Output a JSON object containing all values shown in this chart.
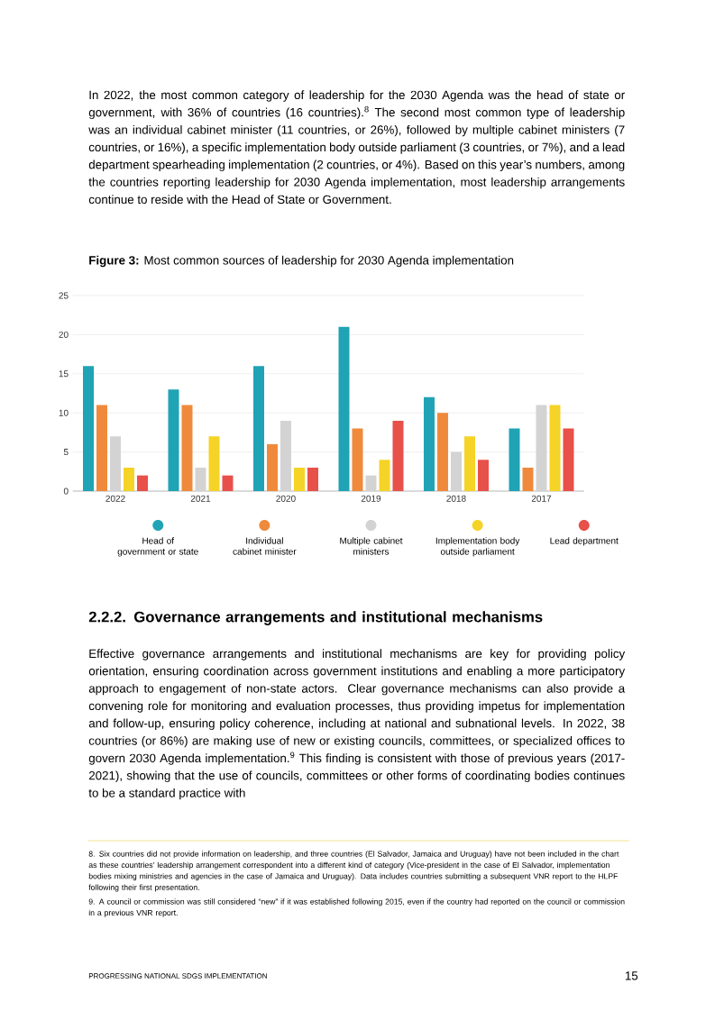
{
  "chart_data": {
    "type": "bar",
    "title": "**Figure 3:** Most common sources of leadership for 2030 Agenda implementation",
    "categories": [
      "2022",
      "2021",
      "2020",
      "2019",
      "2018",
      "2017"
    ],
    "series": [
      {
        "name": "Head of government or state",
        "color": "#1fa3b5",
        "values": [
          16,
          13,
          16,
          21,
          12,
          8
        ]
      },
      {
        "name": "Individual cabinet minister",
        "color": "#ef8a3c",
        "values": [
          11,
          11,
          6,
          8,
          10,
          3
        ]
      },
      {
        "name": "Multiple cabinet ministers",
        "color": "#d3d3d3",
        "values": [
          7,
          3,
          9,
          2,
          5,
          11
        ]
      },
      {
        "name": "Implementation body outside parliament",
        "color": "#f5d327",
        "values": [
          3,
          7,
          3,
          4,
          7,
          11
        ]
      },
      {
        "name": "Lead department",
        "color": "#e8504a",
        "values": [
          2,
          2,
          3,
          9,
          4,
          8
        ]
      }
    ],
    "ylim": [
      0,
      25
    ],
    "yticks": [
      0,
      5,
      10,
      15,
      20,
      25
    ],
    "grid": "y",
    "legend": "bottom",
    "annotations": [
      "In 2022, the most common category of leadership for the 2030 Agenda was the head of state or government, with 36% of countries (16 countries).$^{8}$ The second most common type of leadership was an individual cabinet minister (11 countries, or 26%), followed by multiple cabinet ministers (7 countries, or 16%), a specific implementation body outside parliament (3 countries, or 7%), and a lead department spearheading implementation (2 countries, or 4%). Based on this year’s numbers, among the countries reporting leadership for 2030 Agenda implementation, most leadership arrangements continue to reside with the Head of State or Government.",
      "2.2.2. Governance arrangements and institutional mechanisms",
      "Effective governance arrangements and institutional mechanisms are key for providing policy orientation, ensuring coordination across government institutions and enabling a more participatory approach to engagement of non-state actors. Clear governance mechanisms can also provide a convening role for monitoring and evaluation processes, thus providing impetus for implementation and follow-up, ensuring policy coherence, including at national and subnational levels. In 2022, 38 countries (or 86%) are making use of new or existing councils, committees, or specialized offices to govern 2030 Agenda implementation.$^{9}$ This finding is consistent with those of previous years (2017-2021), showing that the use of councils, committees or other forms of coordinating bodies continues to be a standard practice with",
      "8. Six countries did not provide information on leadership, and three countries (El Salvador, Jamaica and Uruguay) have not been included in the chart as these countries’ leadership arrangement correspondent into a different kind of category (Vice-president in the case of El Salvador, implementation bodies mixing ministries and agencies in the case of Jamaica and Uruguay). Data includes countries submitting a subsequent VNR report to the HLPF following their first presentation.",
      "9. A council or commission was still considered “new” if it was established following 2015, even if the country had reported on the council or commission in a previous VNR report.",
      "PROGRESSING NATIONAL SDGS IMPLEMENTATION",
      "15"
    ]
  }
}
